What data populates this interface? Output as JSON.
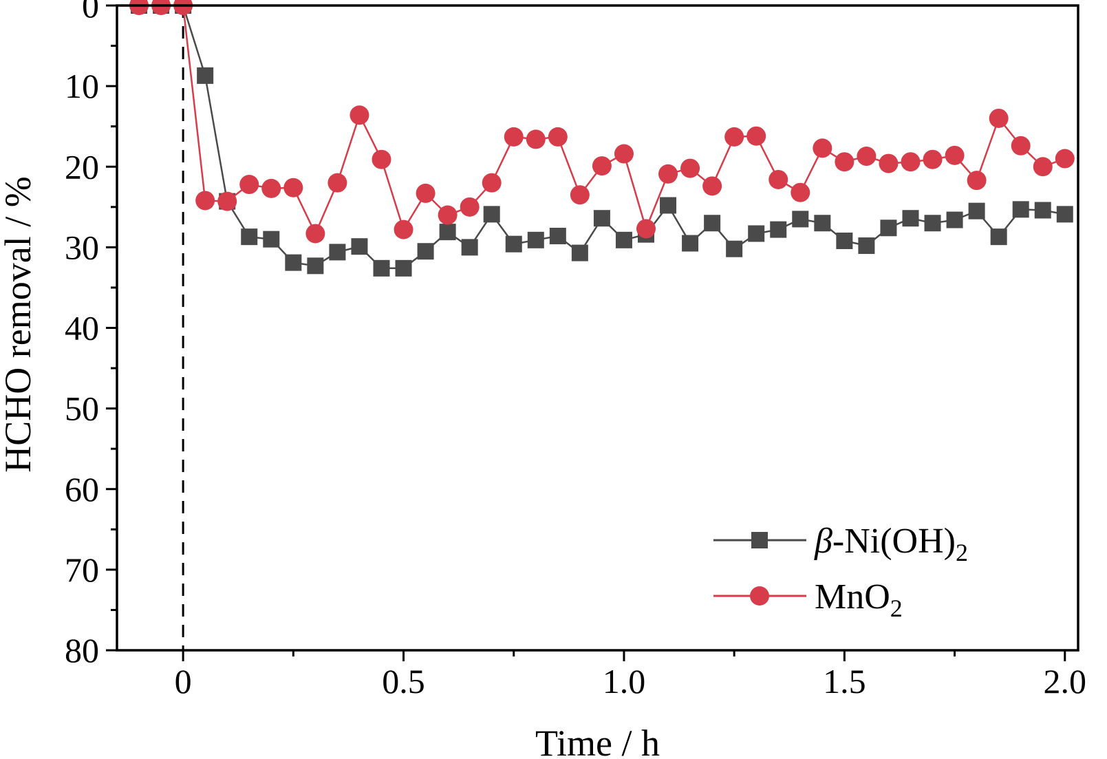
{
  "chart_data": {
    "type": "line",
    "xlabel": "Time / h",
    "ylabel": "HCHO removal / %",
    "xlim": [
      -0.15,
      2.03
    ],
    "ylim": [
      0,
      80
    ],
    "y_inverted": true,
    "x_ticks": [
      "0",
      "0.5",
      "1.0",
      "1.5",
      "2.0"
    ],
    "x_tick_values": [
      0,
      0.5,
      1.0,
      1.5,
      2.0
    ],
    "y_ticks": [
      "0",
      "10",
      "20",
      "30",
      "40",
      "50",
      "60",
      "70",
      "80"
    ],
    "y_tick_values": [
      0,
      10,
      20,
      30,
      40,
      50,
      60,
      70,
      80
    ],
    "vline_x": 0,
    "legend_position": "bottom-right",
    "series": [
      {
        "name": "β-Ni(OH)₂",
        "legend_main": "β",
        "legend_mid": "-Ni(OH)",
        "legend_sub": "2",
        "color": "#4a4a4a",
        "marker": "square",
        "x": [
          -0.1,
          -0.05,
          0,
          0.05,
          0.1,
          0.15,
          0.2,
          0.25,
          0.3,
          0.35,
          0.4,
          0.45,
          0.5,
          0.55,
          0.6,
          0.65,
          0.7,
          0.75,
          0.8,
          0.85,
          0.9,
          0.95,
          1.0,
          1.05,
          1.1,
          1.15,
          1.2,
          1.25,
          1.3,
          1.35,
          1.4,
          1.45,
          1.5,
          1.55,
          1.6,
          1.65,
          1.7,
          1.75,
          1.8,
          1.85,
          1.9,
          1.95,
          2.0
        ],
        "values": [
          0,
          0,
          0,
          8.7,
          24.3,
          28.7,
          29.0,
          31.9,
          32.3,
          30.6,
          29.9,
          32.6,
          32.6,
          30.5,
          28.1,
          30.0,
          25.9,
          29.6,
          29.1,
          28.6,
          30.7,
          26.4,
          29.1,
          28.4,
          24.8,
          29.5,
          27.0,
          30.2,
          28.3,
          27.8,
          26.5,
          27.0,
          29.2,
          29.8,
          27.6,
          26.4,
          27.0,
          26.6,
          25.5,
          28.7,
          25.3,
          25.4,
          25.9
        ]
      },
      {
        "name": "MnO₂",
        "legend_main": "",
        "legend_mid": "MnO",
        "legend_sub": "2",
        "color": "#d63c4a",
        "marker": "circle",
        "x": [
          -0.1,
          -0.05,
          0,
          0.05,
          0.1,
          0.15,
          0.2,
          0.25,
          0.3,
          0.35,
          0.4,
          0.45,
          0.5,
          0.55,
          0.6,
          0.65,
          0.7,
          0.75,
          0.8,
          0.85,
          0.9,
          0.95,
          1.0,
          1.05,
          1.1,
          1.15,
          1.2,
          1.25,
          1.3,
          1.35,
          1.4,
          1.45,
          1.5,
          1.55,
          1.6,
          1.65,
          1.7,
          1.75,
          1.8,
          1.85,
          1.9,
          1.95,
          2.0
        ],
        "values": [
          0,
          0,
          0,
          24.2,
          24.3,
          22.2,
          22.7,
          22.6,
          28.3,
          22.0,
          13.6,
          19.1,
          27.8,
          23.3,
          26.0,
          25.0,
          22.0,
          16.3,
          16.6,
          16.3,
          23.5,
          19.9,
          18.4,
          27.7,
          20.9,
          20.2,
          22.4,
          16.3,
          16.2,
          21.6,
          23.2,
          17.7,
          19.4,
          18.7,
          19.6,
          19.4,
          19.1,
          18.6,
          21.7,
          14.0,
          17.4,
          20.0,
          19.0
        ]
      }
    ]
  }
}
